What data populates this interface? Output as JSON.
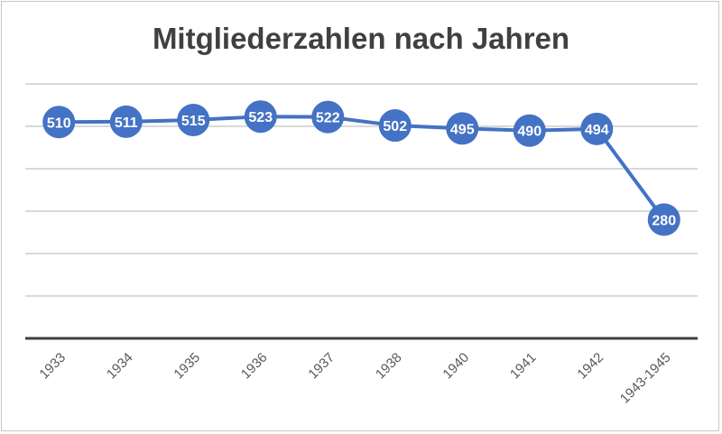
{
  "chart_data": {
    "type": "line",
    "title": "Mitgliederzahlen nach Jahren",
    "categories": [
      "1933",
      "1934",
      "1935",
      "1936",
      "1937",
      "1938",
      "1940",
      "1941",
      "1942",
      "1943-1945"
    ],
    "series": [
      {
        "values": [
          510,
          511,
          515,
          523,
          522,
          502,
          495,
          490,
          494,
          280
        ]
      }
    ],
    "data_labels": true,
    "ylim": [
      0,
      600
    ],
    "y_gridlines": [
      100,
      200,
      300,
      400,
      500,
      600
    ],
    "y_tick_labels_shown": false,
    "grid": true,
    "legend": "none",
    "xlabel": "",
    "ylabel": "",
    "colors": {
      "line": "#4472c4",
      "grid": "#d9d9d9",
      "axis": "#404040",
      "text": "#595959",
      "title": "#404040"
    }
  }
}
